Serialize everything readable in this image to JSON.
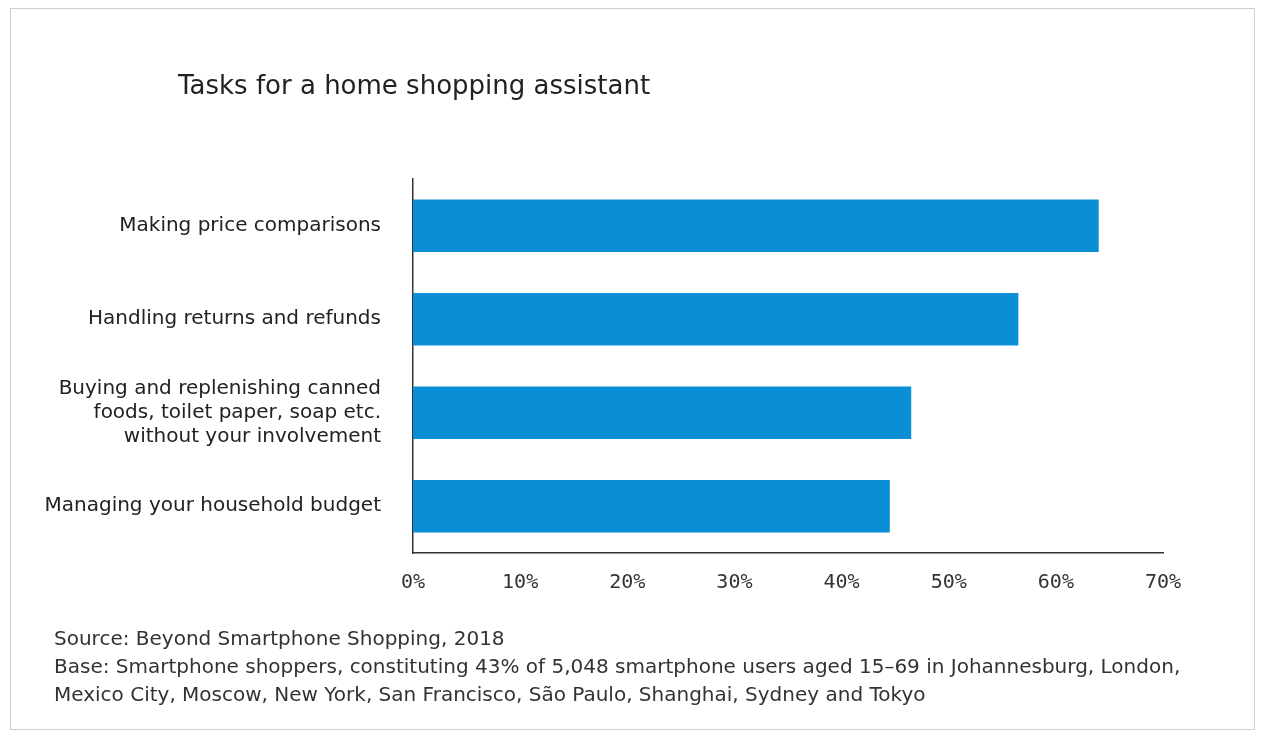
{
  "chart_data": {
    "type": "bar",
    "orientation": "horizontal",
    "title": "Tasks for a home shopping assistant",
    "categories": [
      "Making price comparisons",
      "Handling returns and refunds",
      "Buying and replenishing canned foods, toilet paper, soap etc. without your involvement",
      "Managing your household budget"
    ],
    "values": [
      64,
      56.5,
      46.5,
      44.5
    ],
    "color": "#0a8fd6",
    "xlim": [
      0,
      70
    ],
    "xticks": [
      {
        "value": 0,
        "label": "0%"
      },
      {
        "value": 10,
        "label": "10%"
      },
      {
        "value": 20,
        "label": "20%"
      },
      {
        "value": 30,
        "label": "30%"
      },
      {
        "value": 40,
        "label": "40%"
      },
      {
        "value": 50,
        "label": "50%"
      },
      {
        "value": 60,
        "label": "60%"
      },
      {
        "value": 70,
        "label": "70%"
      }
    ],
    "grid": false,
    "legend": false,
    "annotations": [
      "Source: Beyond Smartphone Shopping, 2018",
      "Base: Smartphone shoppers, constituting 43% of 5,048 smartphone users aged 15–69 in Johannesburg, London, Mexico City, Moscow, New York, San Francisco, São Paulo, Shanghai, Sydney and Tokyo"
    ]
  }
}
